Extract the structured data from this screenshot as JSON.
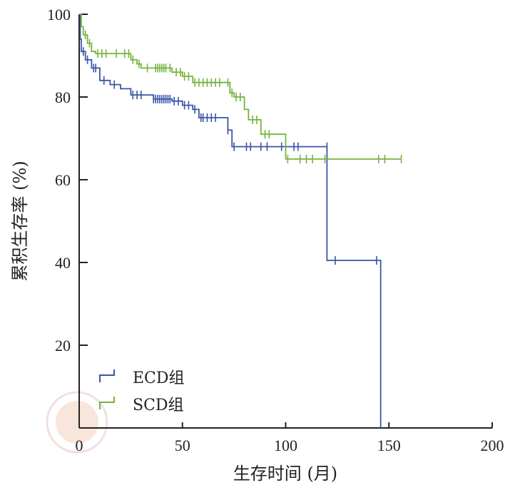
{
  "chart_data": {
    "type": "line",
    "subtype": "kaplan-meier",
    "title": "",
    "xlabel": "生存时间 (月)",
    "ylabel": "累积生存率 (%)",
    "xlim": [
      0,
      200
    ],
    "ylim": [
      0,
      100
    ],
    "xticks": [
      0,
      50,
      100,
      150,
      200
    ],
    "yticks": [
      20,
      40,
      60,
      80,
      100
    ],
    "grid": false,
    "legend_position": "bottom-left",
    "series": [
      {
        "name": "ECD组",
        "color": "#3a55a8",
        "steps": [
          [
            0,
            100
          ],
          [
            0.5,
            94
          ],
          [
            1,
            91
          ],
          [
            3,
            89
          ],
          [
            6,
            87
          ],
          [
            10,
            84
          ],
          [
            15,
            83
          ],
          [
            20,
            82
          ],
          [
            25,
            80.5
          ],
          [
            36,
            79.5
          ],
          [
            45,
            79
          ],
          [
            50,
            78
          ],
          [
            55,
            77
          ],
          [
            58,
            75
          ],
          [
            72,
            72
          ],
          [
            74,
            68
          ],
          [
            120,
            40.5
          ],
          [
            146,
            0
          ]
        ],
        "censored": [
          [
            2,
            91
          ],
          [
            4,
            89
          ],
          [
            7,
            87
          ],
          [
            8,
            87
          ],
          [
            12,
            84
          ],
          [
            17,
            83
          ],
          [
            26,
            80.5
          ],
          [
            28,
            80.5
          ],
          [
            30,
            80.5
          ],
          [
            36,
            79.5
          ],
          [
            37,
            79.5
          ],
          [
            38,
            79.5
          ],
          [
            39,
            79.5
          ],
          [
            40,
            79.5
          ],
          [
            41,
            79.5
          ],
          [
            42,
            79.5
          ],
          [
            43,
            79.5
          ],
          [
            44,
            79.5
          ],
          [
            46,
            79
          ],
          [
            48,
            79
          ],
          [
            51,
            78
          ],
          [
            53,
            78
          ],
          [
            56,
            77
          ],
          [
            59,
            75
          ],
          [
            60,
            75
          ],
          [
            62,
            75
          ],
          [
            64,
            75
          ],
          [
            66,
            75
          ],
          [
            72,
            72
          ],
          [
            75,
            68
          ],
          [
            81,
            68
          ],
          [
            83,
            68
          ],
          [
            88,
            68
          ],
          [
            91,
            68
          ],
          [
            98,
            68
          ],
          [
            104,
            68
          ],
          [
            106,
            68
          ],
          [
            120,
            68
          ],
          [
            124,
            40.5
          ],
          [
            144,
            40.5
          ]
        ]
      },
      {
        "name": "SCD组",
        "color": "#77b341",
        "steps": [
          [
            0,
            100
          ],
          [
            1,
            97
          ],
          [
            2,
            95
          ],
          [
            4,
            93
          ],
          [
            6,
            91
          ],
          [
            8,
            90.5
          ],
          [
            25,
            89
          ],
          [
            28,
            88
          ],
          [
            30,
            87
          ],
          [
            45,
            86
          ],
          [
            50,
            85
          ],
          [
            55,
            83.5
          ],
          [
            73,
            81
          ],
          [
            75,
            80
          ],
          [
            80,
            77
          ],
          [
            82,
            74.5
          ],
          [
            88,
            71
          ],
          [
            100,
            65
          ]
        ],
        "censored": [
          [
            1,
            98
          ],
          [
            3,
            95
          ],
          [
            5,
            93
          ],
          [
            9,
            90.5
          ],
          [
            11,
            90.5
          ],
          [
            13,
            90.5
          ],
          [
            18,
            90.5
          ],
          [
            22,
            90.5
          ],
          [
            24,
            90.5
          ],
          [
            26,
            89
          ],
          [
            29,
            88
          ],
          [
            33,
            87
          ],
          [
            37,
            87
          ],
          [
            38,
            87
          ],
          [
            39,
            87
          ],
          [
            40,
            87
          ],
          [
            41,
            87
          ],
          [
            42,
            87
          ],
          [
            44,
            87
          ],
          [
            47,
            86
          ],
          [
            49,
            86
          ],
          [
            51,
            85
          ],
          [
            53,
            85
          ],
          [
            56,
            83.5
          ],
          [
            58,
            83.5
          ],
          [
            60,
            83.5
          ],
          [
            62,
            83.5
          ],
          [
            64,
            83.5
          ],
          [
            66,
            83.5
          ],
          [
            68,
            83.5
          ],
          [
            72,
            83.5
          ],
          [
            74,
            81
          ],
          [
            76,
            80
          ],
          [
            78,
            80
          ],
          [
            84,
            74.5
          ],
          [
            86,
            74.5
          ],
          [
            90,
            71
          ],
          [
            92,
            71
          ],
          [
            101,
            65
          ],
          [
            107,
            65
          ],
          [
            110,
            65
          ],
          [
            113,
            65
          ],
          [
            119,
            65
          ],
          [
            145,
            65
          ],
          [
            148,
            65
          ],
          [
            156,
            65
          ]
        ]
      }
    ]
  }
}
